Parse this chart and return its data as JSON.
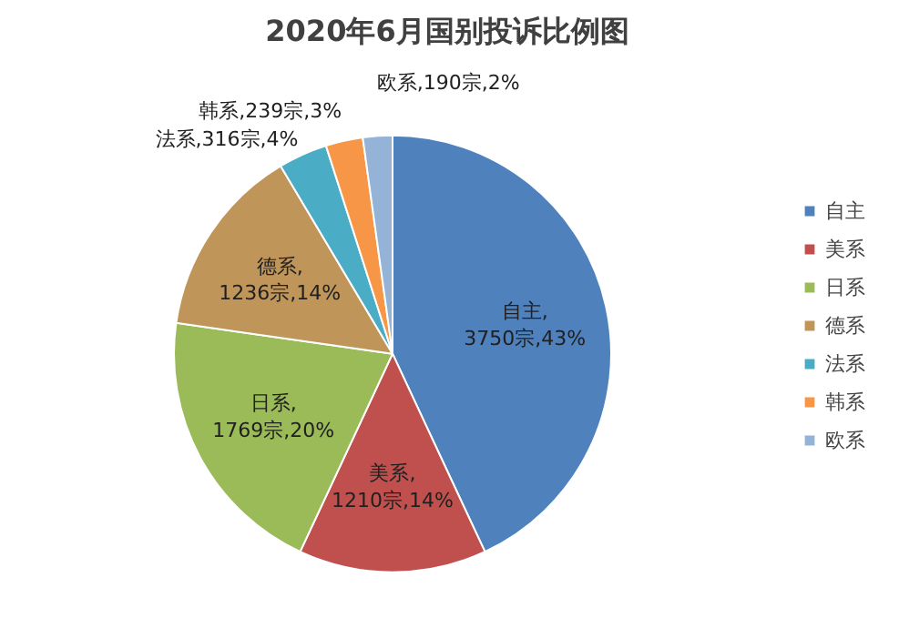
{
  "chart_data": {
    "type": "pie",
    "title": "2020年6月国别投诉比例图",
    "categories": [
      "自主",
      "美系",
      "日系",
      "德系",
      "法系",
      "韩系",
      "欧系"
    ],
    "values": [
      3750,
      1210,
      1769,
      1236,
      316,
      239,
      190
    ],
    "colors": [
      "#4f81bd",
      "#c0504d",
      "#9bbb59",
      "#c0955a",
      "#4bacc6",
      "#f79646",
      "#95b3d7"
    ],
    "value_labels": [
      "自主,\n3750宗,43%",
      "美系,\n1210宗,14%",
      "日系,\n1769宗,20%",
      "德系,\n1236宗,14%",
      "法系,316宗,4%",
      "韩系,239宗,3%",
      "欧系,190宗,2%"
    ],
    "legend": "right"
  }
}
